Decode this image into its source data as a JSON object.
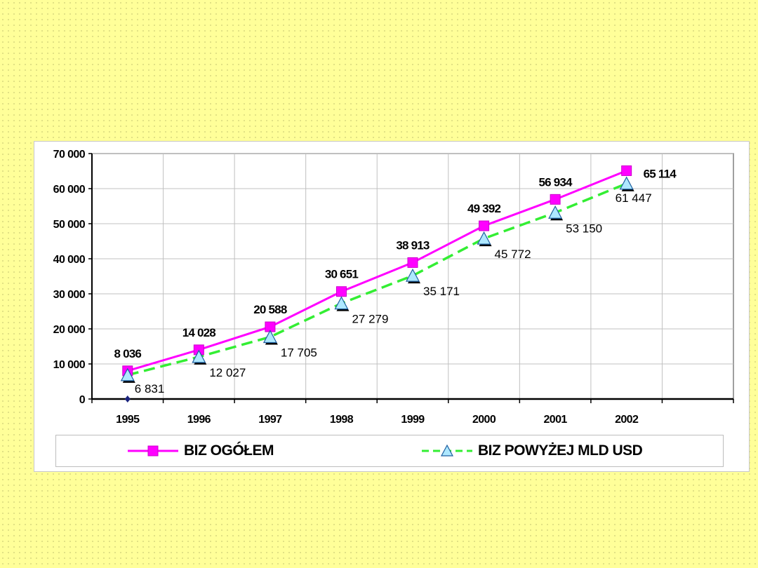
{
  "chart_data": {
    "type": "line",
    "title": "",
    "xlabel": "",
    "ylabel": "",
    "x": [
      "1995",
      "1996",
      "1997",
      "1998",
      "1999",
      "2000",
      "2001",
      "2002"
    ],
    "y_ticks": [
      "0",
      "10 000",
      "20 000",
      "30 000",
      "40 000",
      "50 000",
      "60 000",
      "70 000"
    ],
    "ylim": [
      0,
      70000
    ],
    "grid": true,
    "legend_position": "bottom",
    "series": [
      {
        "name": "BIZ OGÓŁEM",
        "values": [
          8036,
          14028,
          20588,
          30651,
          38913,
          49392,
          56934,
          65114
        ],
        "labels": [
          "8 036",
          "14 028",
          "20 588",
          "30 651",
          "38 913",
          "49 392",
          "56 934",
          "65 114"
        ],
        "color": "#ff00ff",
        "line_style": "solid",
        "marker": "square"
      },
      {
        "name": "BIZ POWYŻEJ  MLD USD",
        "values": [
          6831,
          12027,
          17705,
          27279,
          35171,
          45772,
          53150,
          61447
        ],
        "labels": [
          "6 831",
          "12 027",
          "17 705",
          "27 279",
          "35 171",
          "45 772",
          "53 150",
          "61 447"
        ],
        "color": "#33ee33",
        "line_style": "dashed",
        "marker": "triangle"
      }
    ]
  },
  "colors": {
    "background": "#ffff99",
    "panel": "#ffffff",
    "grid": "#c0c0c0",
    "triangle_fill": "#aee8ff",
    "triangle_stroke": "#1f5fa0"
  }
}
